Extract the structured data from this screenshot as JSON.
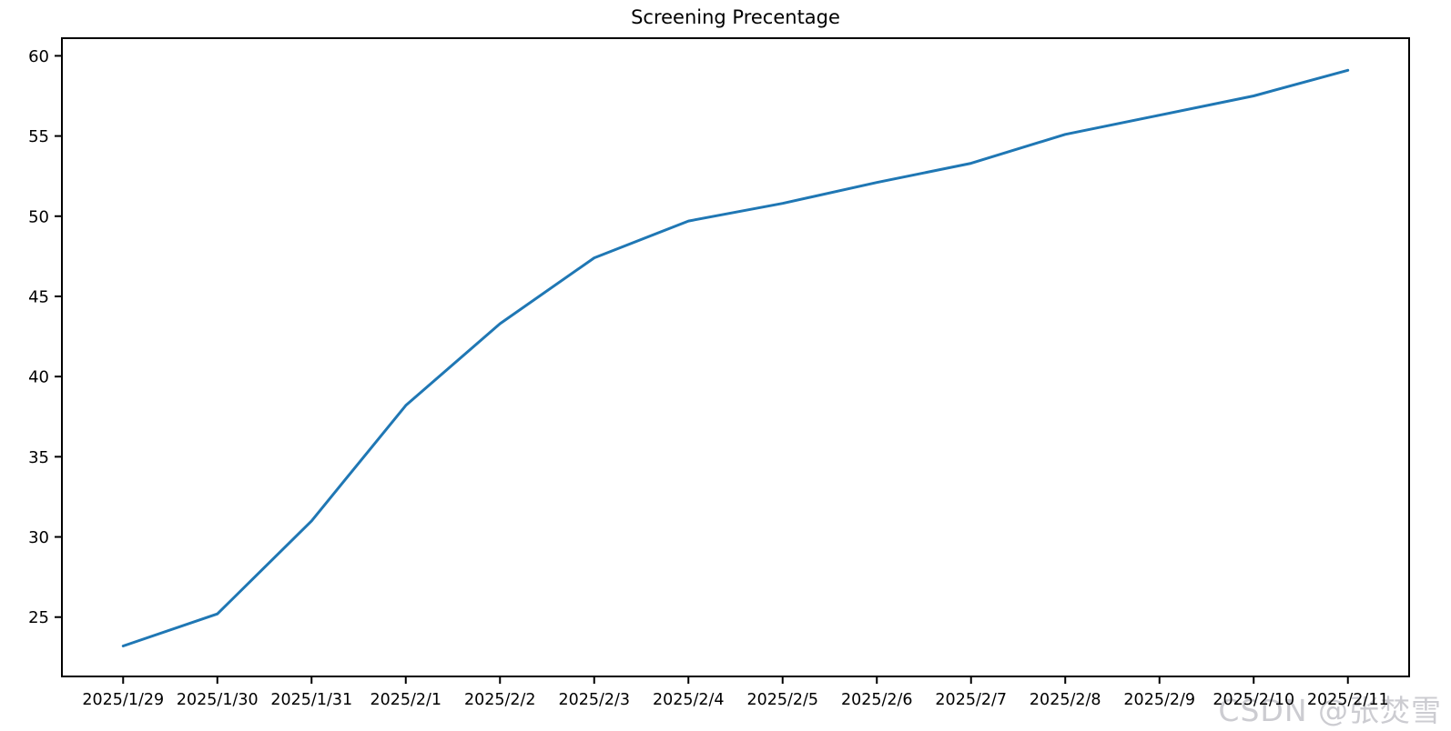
{
  "chart_data": {
    "type": "line",
    "title": "Screening Precentage",
    "categories": [
      "2025/1/29",
      "2025/1/30",
      "2025/1/31",
      "2025/2/1",
      "2025/2/2",
      "2025/2/3",
      "2025/2/4",
      "2025/2/5",
      "2025/2/6",
      "2025/2/7",
      "2025/2/8",
      "2025/2/9",
      "2025/2/10",
      "2025/2/11"
    ],
    "values": [
      23.2,
      25.2,
      31.0,
      38.2,
      43.3,
      47.4,
      49.7,
      50.8,
      52.1,
      53.3,
      55.1,
      56.3,
      57.5,
      59.1
    ],
    "xlabel": "",
    "ylabel": "",
    "ylim": [
      21.3,
      61.1
    ],
    "yticks": [
      25,
      30,
      35,
      40,
      45,
      50,
      55,
      60
    ],
    "grid": false,
    "legend": null,
    "line_color": "#1f77b4",
    "axis_color": "#000000",
    "tick_label_color": "#000000"
  },
  "watermark": {
    "text": "CSDN @张焚雪",
    "color": "#c7c7cd"
  }
}
